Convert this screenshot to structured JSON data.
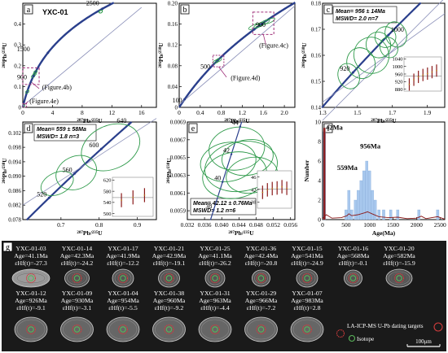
{
  "colors": {
    "concordia": "#2a3f8c",
    "ellipse": "#2e9a4a",
    "label_box": "#a0307a",
    "hist_bar": "#a8c8ee",
    "kde_line": "#8b1a1a",
    "panel_bg": "#1a1a1a",
    "spot_red": "#d23c3c",
    "spot_green": "#5ab55a"
  },
  "chart_data": [
    {
      "id": "a",
      "type": "scatter",
      "panel_label": "a",
      "title": "YXC-01",
      "xlabel_num": "207",
      "xlabel_den": "235",
      "ylabel_num": "206",
      "ylabel_den": "238",
      "xlim": [
        0,
        18
      ],
      "ylim": [
        0,
        0.5
      ],
      "xticks": [
        "0",
        "4",
        "8",
        "12",
        "16"
      ],
      "yticks": [
        "0",
        "0.1",
        "0.2",
        "0.3",
        "0.4"
      ],
      "concordia_labels": [
        "2500",
        "1500",
        "900"
      ],
      "annotations": [
        "(Figure.4b)",
        "(Figure.4e)"
      ],
      "ellipses": [
        {
          "x": 0.05,
          "y": 0.007
        },
        {
          "x": 0.6,
          "y": 0.075
        },
        {
          "x": 1.4,
          "y": 0.15
        },
        {
          "x": 1.6,
          "y": 0.16
        },
        {
          "x": 1.7,
          "y": 0.17
        },
        {
          "x": 10.5,
          "y": 0.46
        }
      ]
    },
    {
      "id": "b",
      "type": "scatter",
      "panel_label": "b",
      "xlabel_num": "207",
      "xlabel_den": "235",
      "ylabel_num": "206",
      "ylabel_den": "238",
      "xlim": [
        0,
        2.2
      ],
      "ylim": [
        0,
        0.2
      ],
      "xticks": [
        "0",
        "0.4",
        "0.8",
        "1.2",
        "1.6",
        "2.0"
      ],
      "yticks": [
        "0",
        "0.04",
        "0.08",
        "0.12",
        "0.16",
        "0.20"
      ],
      "concordia_labels": [
        "900",
        "500",
        "100"
      ],
      "annotations": [
        "(Figure.4c)",
        "(Figure.4d)"
      ],
      "ellipses": [
        {
          "x": 0.7,
          "y": 0.088
        },
        {
          "x": 0.75,
          "y": 0.091
        },
        {
          "x": 1.42,
          "y": 0.155
        },
        {
          "x": 1.52,
          "y": 0.158
        },
        {
          "x": 1.62,
          "y": 0.163
        },
        {
          "x": 1.72,
          "y": 0.166
        }
      ]
    },
    {
      "id": "c",
      "type": "scatter",
      "panel_label": "c",
      "stats_line1": "Mean= 956 ± 14Ma",
      "stats_line2": "MSWD= 2.0  n=7",
      "xlabel_num": "207",
      "xlabel_den": "235",
      "ylabel_num": "206",
      "ylabel_den": "238",
      "xlim": [
        1.3,
        2.0
      ],
      "ylim": [
        0.14,
        0.18
      ],
      "xticks": [
        "1.3",
        "1.5",
        "1.7",
        "1.9"
      ],
      "yticks": [
        "0.14",
        "0.15",
        "0.16",
        "0.17",
        "0.18"
      ],
      "concordia_labels": [
        "1000",
        "920"
      ],
      "inset": {
        "yticks": [
          "1040",
          "1000",
          "960",
          "920",
          "880"
        ],
        "bars": [
          905,
          930,
          945,
          955,
          962,
          970,
          978
        ]
      },
      "ellipses": [
        {
          "x": 1.45,
          "y": 0.152,
          "rx": 0.06,
          "ry": 0.005
        },
        {
          "x": 1.52,
          "y": 0.157,
          "rx": 0.08,
          "ry": 0.006
        },
        {
          "x": 1.58,
          "y": 0.16,
          "rx": 0.1,
          "ry": 0.007
        },
        {
          "x": 1.62,
          "y": 0.164,
          "rx": 0.07,
          "ry": 0.005
        },
        {
          "x": 1.66,
          "y": 0.167,
          "rx": 0.06,
          "ry": 0.004
        },
        {
          "x": 1.68,
          "y": 0.163,
          "rx": 0.05,
          "ry": 0.004
        },
        {
          "x": 1.72,
          "y": 0.168,
          "rx": 0.06,
          "ry": 0.005
        }
      ]
    },
    {
      "id": "d",
      "type": "scatter",
      "panel_label": "d",
      "stats_line1": "Mean= 559 ± 58Ma",
      "stats_line2": "MSWD= 1.8  n=3",
      "xlabel_num": "207",
      "xlabel_den": "235",
      "ylabel_num": "206",
      "ylabel_den": "238",
      "xlim": [
        0.6,
        0.95
      ],
      "ylim": [
        0.078,
        0.105
      ],
      "xticks": [
        "0.7",
        "0.8",
        "0.9"
      ],
      "yticks": [
        "0.078",
        "0.082",
        "0.086",
        "0.090",
        "0.094",
        "0.098",
        "0.102"
      ],
      "concordia_labels": [
        "640",
        "600",
        "560",
        "520"
      ],
      "inset": {
        "yticks": [
          "620",
          "580",
          "540",
          "500"
        ],
        "bars": [
          548,
          558,
          566
        ]
      },
      "ellipses": [
        {
          "x": 0.69,
          "y": 0.088,
          "rx": 0.045,
          "ry": 0.003
        },
        {
          "x": 0.74,
          "y": 0.091,
          "rx": 0.055,
          "ry": 0.0045
        },
        {
          "x": 0.83,
          "y": 0.098,
          "rx": 0.08,
          "ry": 0.006
        }
      ]
    },
    {
      "id": "e",
      "type": "scatter",
      "panel_label": "e",
      "stats_line1": "Mean= 42.12 ± 0.76Ma",
      "stats_line2": "MSWD= 1.2  n=6",
      "xlabel_num": "207",
      "xlabel_den": "235",
      "ylabel_num": "206",
      "ylabel_den": "238",
      "xlim": [
        0.032,
        0.057
      ],
      "ylim": [
        0.0058,
        0.0069
      ],
      "xticks": [
        "0.032",
        "0.036",
        "0.040",
        "0.044",
        "0.048",
        "0.052",
        "0.056"
      ],
      "yticks": [
        "0.0059",
        "0.0061",
        "0.0063",
        "0.0065",
        "0.0067",
        "0.0069"
      ],
      "concordia_labels": [
        "44",
        "42",
        "40",
        "38"
      ],
      "inset": {
        "yticks": [
          "46",
          "42",
          "38"
        ],
        "bars": [
          41.1,
          41.9,
          42.3,
          42.5,
          42.9,
          42.4
        ]
      },
      "ellipses": [
        {
          "x": 0.0415,
          "y": 0.00645,
          "rx": 0.0065,
          "ry": 0.00022
        },
        {
          "x": 0.0435,
          "y": 0.0066,
          "rx": 0.0065,
          "ry": 0.00024
        },
        {
          "x": 0.0445,
          "y": 0.0064,
          "rx": 0.0085,
          "ry": 0.00028
        },
        {
          "x": 0.043,
          "y": 0.0063,
          "rx": 0.0075,
          "ry": 0.00026
        },
        {
          "x": 0.046,
          "y": 0.0065,
          "rx": 0.006,
          "ry": 0.0002
        },
        {
          "x": 0.047,
          "y": 0.0063,
          "rx": 0.006,
          "ry": 0.0002
        }
      ]
    },
    {
      "id": "f",
      "type": "bar",
      "panel_label": "f",
      "xlabel": "Age(Ma)",
      "ylabel": "Number",
      "xlim": [
        0,
        2600
      ],
      "ylim": [
        0,
        10
      ],
      "xticks": [
        "0",
        "500",
        "1000",
        "1500",
        "2000",
        "2500"
      ],
      "yticks": [
        "0",
        "2",
        "4",
        "6",
        "8",
        "10"
      ],
      "peak_labels": [
        "42Ma",
        "956Ma",
        "559Ma"
      ],
      "bins": [
        {
          "x": 40,
          "v": 9
        },
        {
          "x": 500,
          "v": 1
        },
        {
          "x": 560,
          "v": 3
        },
        {
          "x": 620,
          "v": 1
        },
        {
          "x": 700,
          "v": 2
        },
        {
          "x": 760,
          "v": 3
        },
        {
          "x": 820,
          "v": 4
        },
        {
          "x": 880,
          "v": 5
        },
        {
          "x": 940,
          "v": 6
        },
        {
          "x": 1000,
          "v": 5
        },
        {
          "x": 1060,
          "v": 3
        },
        {
          "x": 1120,
          "v": 2
        },
        {
          "x": 1200,
          "v": 1
        },
        {
          "x": 1300,
          "v": 1
        },
        {
          "x": 1450,
          "v": 1
        },
        {
          "x": 1600,
          "v": 1
        },
        {
          "x": 2050,
          "v": 1
        },
        {
          "x": 2450,
          "v": 1
        }
      ]
    }
  ],
  "panel_g": {
    "label": "g",
    "row1": [
      {
        "name": "YXC-01-03",
        "age": "Age=41.1Ma",
        "ehf": "εHf(t)=-27.3"
      },
      {
        "name": "YXC-01-14",
        "age": "Age=42.3Ma",
        "ehf": "εHf(t)=-24.2"
      },
      {
        "name": "YXC-01-17",
        "age": "Age=41.9Ma",
        "ehf": "εHf(t)=-12.2"
      },
      {
        "name": "YXC-01-21",
        "age": "Age=42.9Ma",
        "ehf": "εHf(t)=-19.1"
      },
      {
        "name": "YXC-01-25",
        "age": "Age=41.1Ma",
        "ehf": "εHf(t)=-26.2"
      },
      {
        "name": "YXC-01-36",
        "age": "Age=42.4Ma",
        "ehf": "εHf(t)=-20.8"
      },
      {
        "name": "YXC-01-15",
        "age": "Age=541Ma",
        "ehf": "εHf(t)=-24.9"
      },
      {
        "name": "YXC-01-16",
        "age": "Age=568Ma",
        "ehf": "εHf(t)=-0.1"
      },
      {
        "name": "YXC-01-20",
        "age": "Age=582Ma",
        "ehf": "εHf(t)=-15.9"
      }
    ],
    "row2": [
      {
        "name": "YXC-01-12",
        "age": "Age=926Ma",
        "ehf": "εHf(t)=-9.1"
      },
      {
        "name": "YXC-01-09",
        "age": "Age=930Ma",
        "ehf": "εHf(t)=-3.1"
      },
      {
        "name": "YXC-01-04",
        "age": "Age=954Ma",
        "ehf": "εHf(t)=-5.5"
      },
      {
        "name": "YXC-01-38",
        "age": "Age=960Ma",
        "ehf": "εHf(t)=-9.2"
      },
      {
        "name": "YXC-01-31",
        "age": "Age=963Ma",
        "ehf": "εHf(t)=-4.4"
      },
      {
        "name": "YXC-01-29",
        "age": "Age=966Ma",
        "ehf": "εHf(t)=-7.2"
      },
      {
        "name": "YXC-01-07",
        "age": "Age=983Ma",
        "ehf": "εHf(t)=2.8"
      }
    ],
    "legend_targets": "LA-ICP-MS U-Pb dating targets",
    "legend_isotope": "Isotope",
    "scale_bar": "100μm"
  }
}
